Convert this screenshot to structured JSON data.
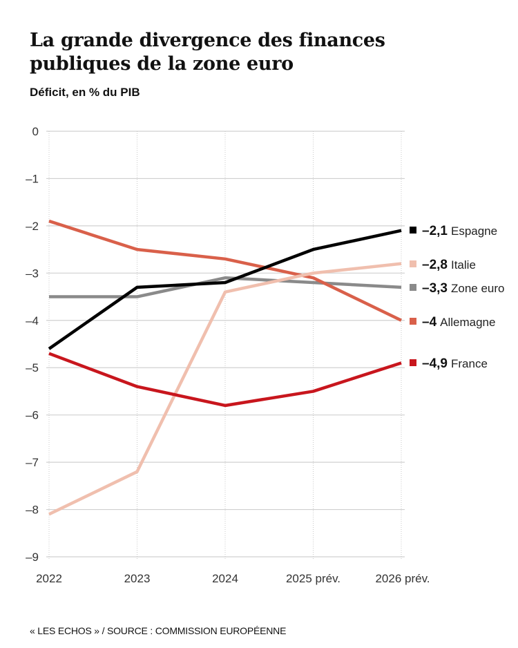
{
  "header": {
    "title": "La grande divergence des finances publiques de la zone euro",
    "subtitle": "Déficit, en % du PIB"
  },
  "footer": {
    "source": "« LES ECHOS » / SOURCE :  COMMISSION EUROPÉENNE"
  },
  "chart_data": {
    "type": "line",
    "title": "La grande divergence des finances publiques de la zone euro",
    "subtitle": "Déficit, en % du PIB",
    "xlabel": "",
    "ylabel": "",
    "categories": [
      "2022",
      "2023",
      "2024",
      "2025 prév.",
      "2026 prév."
    ],
    "ylim": [
      -9,
      0
    ],
    "yticks": [
      0,
      -1,
      -2,
      -3,
      -4,
      -5,
      -6,
      -7,
      -8,
      -9
    ],
    "ytick_labels": [
      "0",
      "–1",
      "–2",
      "–3",
      "–4",
      "–5",
      "–6",
      "–7",
      "–8",
      "–9"
    ],
    "grid": true,
    "legend": "right (end labels)",
    "series": [
      {
        "name": "Espagne",
        "color": "#000000",
        "values": [
          -4.6,
          -3.3,
          -3.2,
          -2.5,
          -2.1
        ],
        "end_label": "–2,1"
      },
      {
        "name": "Italie",
        "color": "#f0bfae",
        "values": [
          -8.1,
          -7.2,
          -3.4,
          -3.0,
          -2.8
        ],
        "end_label": "–2,8"
      },
      {
        "name": "Zone euro",
        "color": "#8a8a8a",
        "values": [
          -3.5,
          -3.5,
          -3.1,
          -3.2,
          -3.3
        ],
        "end_label": "–3,3"
      },
      {
        "name": "Allemagne",
        "color": "#d9604a",
        "values": [
          -1.9,
          -2.5,
          -2.7,
          -3.1,
          -4.0
        ],
        "end_label": "–4"
      },
      {
        "name": "France",
        "color": "#c8161d",
        "values": [
          -4.7,
          -5.4,
          -5.8,
          -5.5,
          -4.9
        ],
        "end_label": "–4,9"
      }
    ],
    "source": "« LES ECHOS » / SOURCE :  COMMISSION EUROPÉENNE"
  }
}
